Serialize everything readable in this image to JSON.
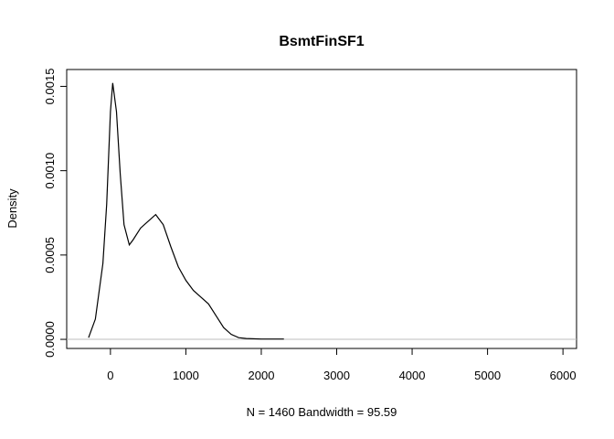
{
  "chart_data": {
    "type": "line",
    "title": "BsmtFinSF1",
    "xlabel": "N = 1460   Bandwidth = 95.59",
    "ylabel": "Density",
    "x": [
      -290,
      -200,
      -100,
      -50,
      0,
      30,
      80,
      130,
      180,
      250,
      300,
      400,
      500,
      600,
      700,
      800,
      900,
      1000,
      1100,
      1200,
      1300,
      1400,
      1500,
      1600,
      1700,
      1800,
      2000,
      2300
    ],
    "series": [
      {
        "color": "#000000",
        "values": [
          1e-05,
          0.00012,
          0.00045,
          0.0008,
          0.00135,
          0.00152,
          0.00135,
          0.00098,
          0.00068,
          0.00056,
          0.00059,
          0.00066,
          0.0007,
          0.00074,
          0.00068,
          0.00055,
          0.00043,
          0.00035,
          0.00029,
          0.00025,
          0.00021,
          0.00014,
          7e-05,
          3e-05,
          1e-05,
          5e-06,
          2e-06,
          2e-06
        ]
      }
    ],
    "xlim": [
      -580,
      6180
    ],
    "ylim": [
      -5.4e-05,
      0.0016
    ],
    "xticks": [
      0,
      1000,
      2000,
      3000,
      4000,
      5000,
      6000
    ],
    "yticks": [
      {
        "value": 0,
        "label": "0.0000"
      },
      {
        "value": 0.0005,
        "label": "0.0005"
      },
      {
        "value": 0.001,
        "label": "0.0010"
      },
      {
        "value": 0.0015,
        "label": "0.0015"
      }
    ],
    "zero_line": true,
    "zero_line_color": "#bebebe"
  }
}
